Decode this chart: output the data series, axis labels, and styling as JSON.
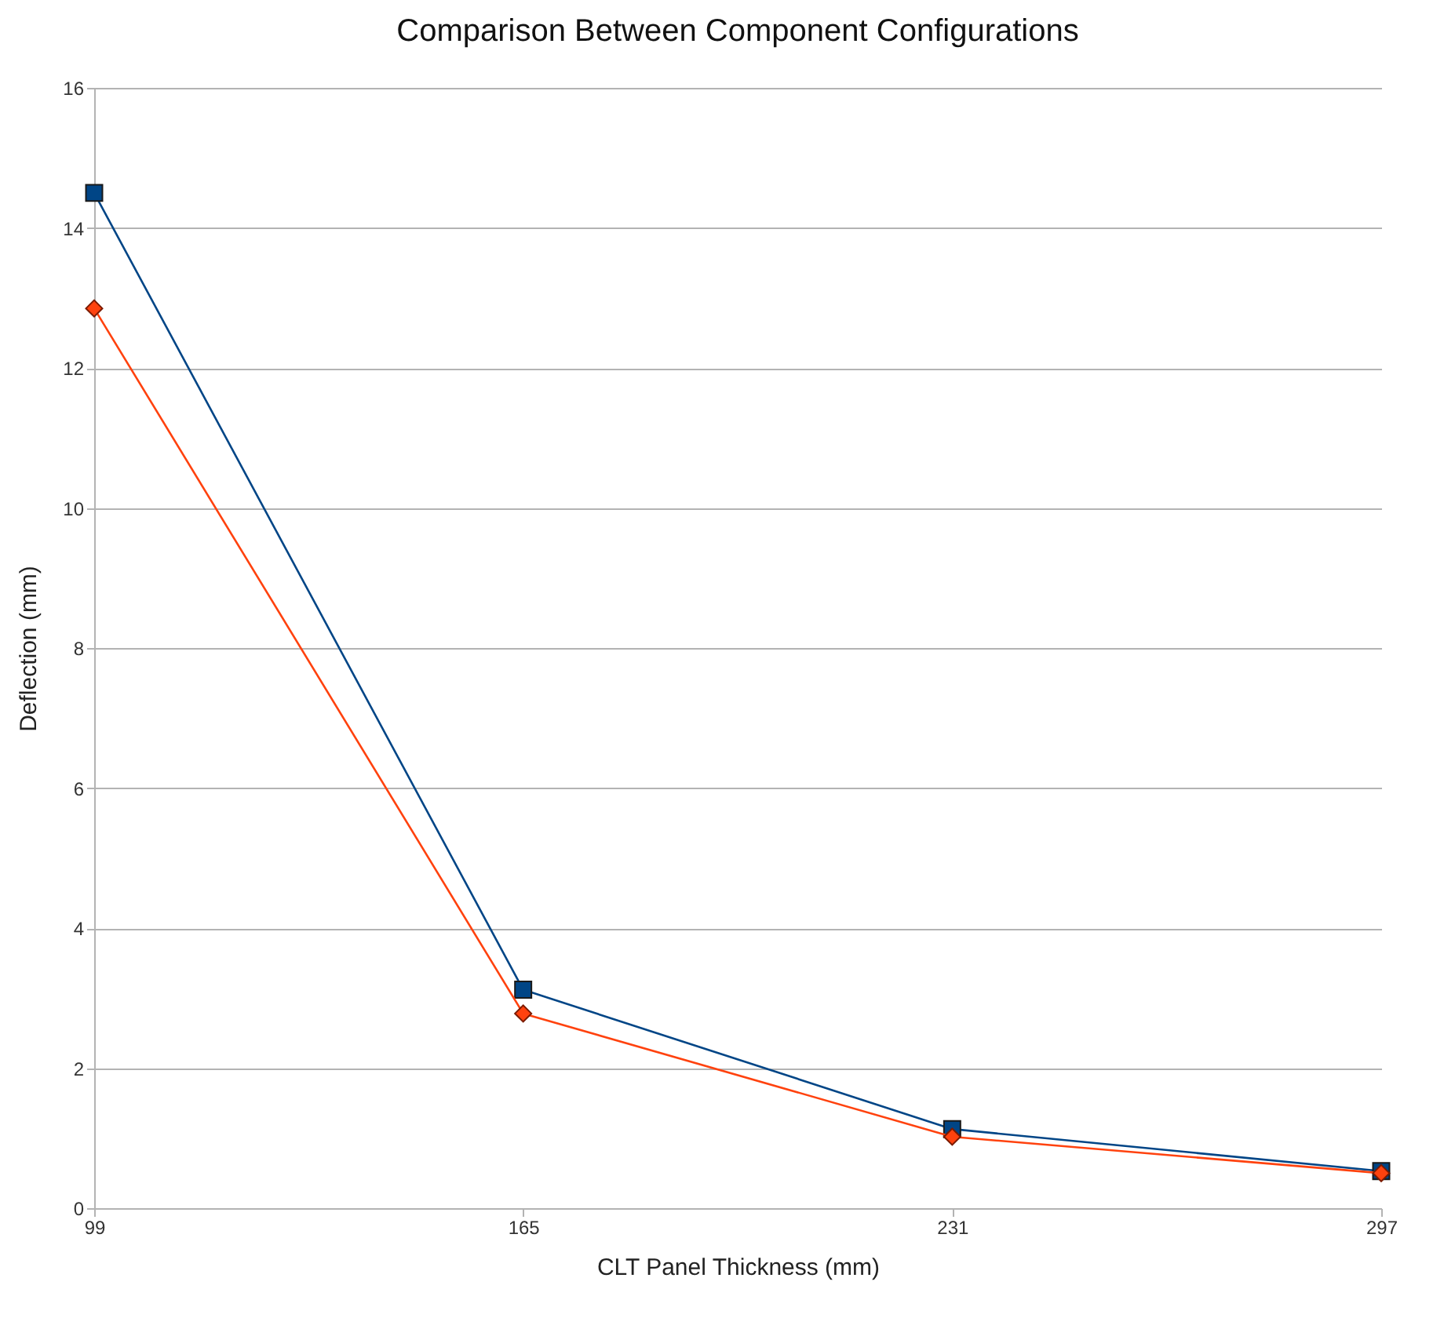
{
  "chart_data": {
    "type": "line",
    "title": "Comparison Between Component Configurations",
    "xlabel": "CLT Panel Thickness (mm)",
    "ylabel": "Deflection (mm)",
    "x": [
      99,
      165,
      231,
      297
    ],
    "xlim": [
      99,
      297
    ],
    "xticks": [
      99,
      165,
      231,
      297
    ],
    "ylim": [
      0,
      16
    ],
    "yticks": [
      0,
      2,
      4,
      6,
      8,
      10,
      12,
      14,
      16
    ],
    "grid": "y",
    "line_style": "solid",
    "series": [
      {
        "color": "#004586",
        "marker": "square",
        "values": [
          14.5,
          3.12,
          1.13,
          0.53
        ]
      },
      {
        "color": "#ff420e",
        "marker": "diamond",
        "values": [
          12.85,
          2.78,
          1.02,
          0.5
        ]
      }
    ]
  }
}
